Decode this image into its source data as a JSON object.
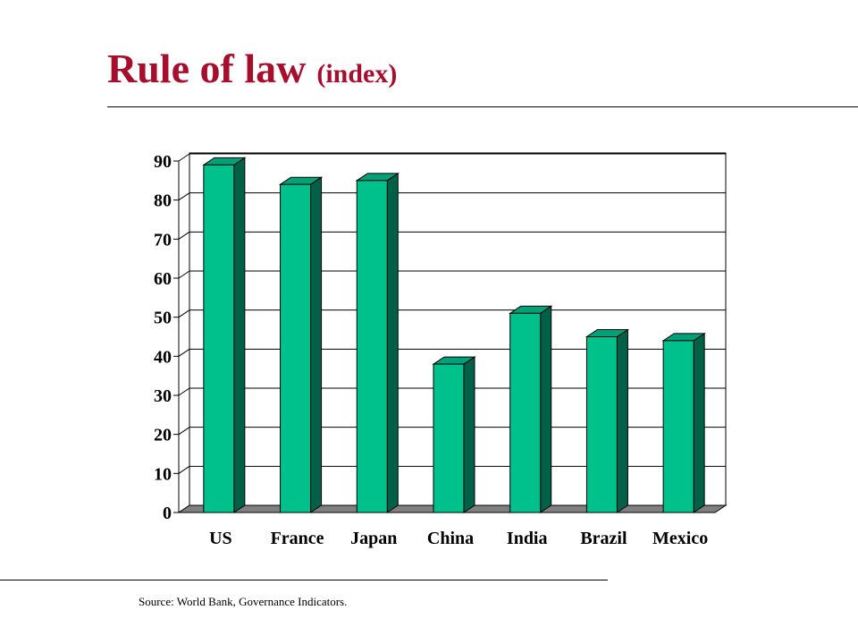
{
  "slide": {
    "title": "Rule of law",
    "subtitle": "(index)",
    "source": "Source:  World Bank, Governance Indicators."
  },
  "colors": {
    "title": "#a50f2d",
    "bar_front": "#00c08b",
    "bar_side": "#006048",
    "bar_top": "#00a078",
    "floor": "#808080"
  },
  "chart_data": {
    "type": "bar",
    "title": "",
    "xlabel": "",
    "ylabel": "",
    "categories": [
      "US",
      "France",
      "Japan",
      "China",
      "India",
      "Brazil",
      "Mexico"
    ],
    "values": [
      89,
      84,
      85,
      38,
      51,
      45,
      44
    ],
    "ylim": [
      0,
      90
    ],
    "yticks": [
      0,
      10,
      20,
      30,
      40,
      50,
      60,
      70,
      80,
      90
    ],
    "grid": true,
    "style": "3d-bar"
  }
}
